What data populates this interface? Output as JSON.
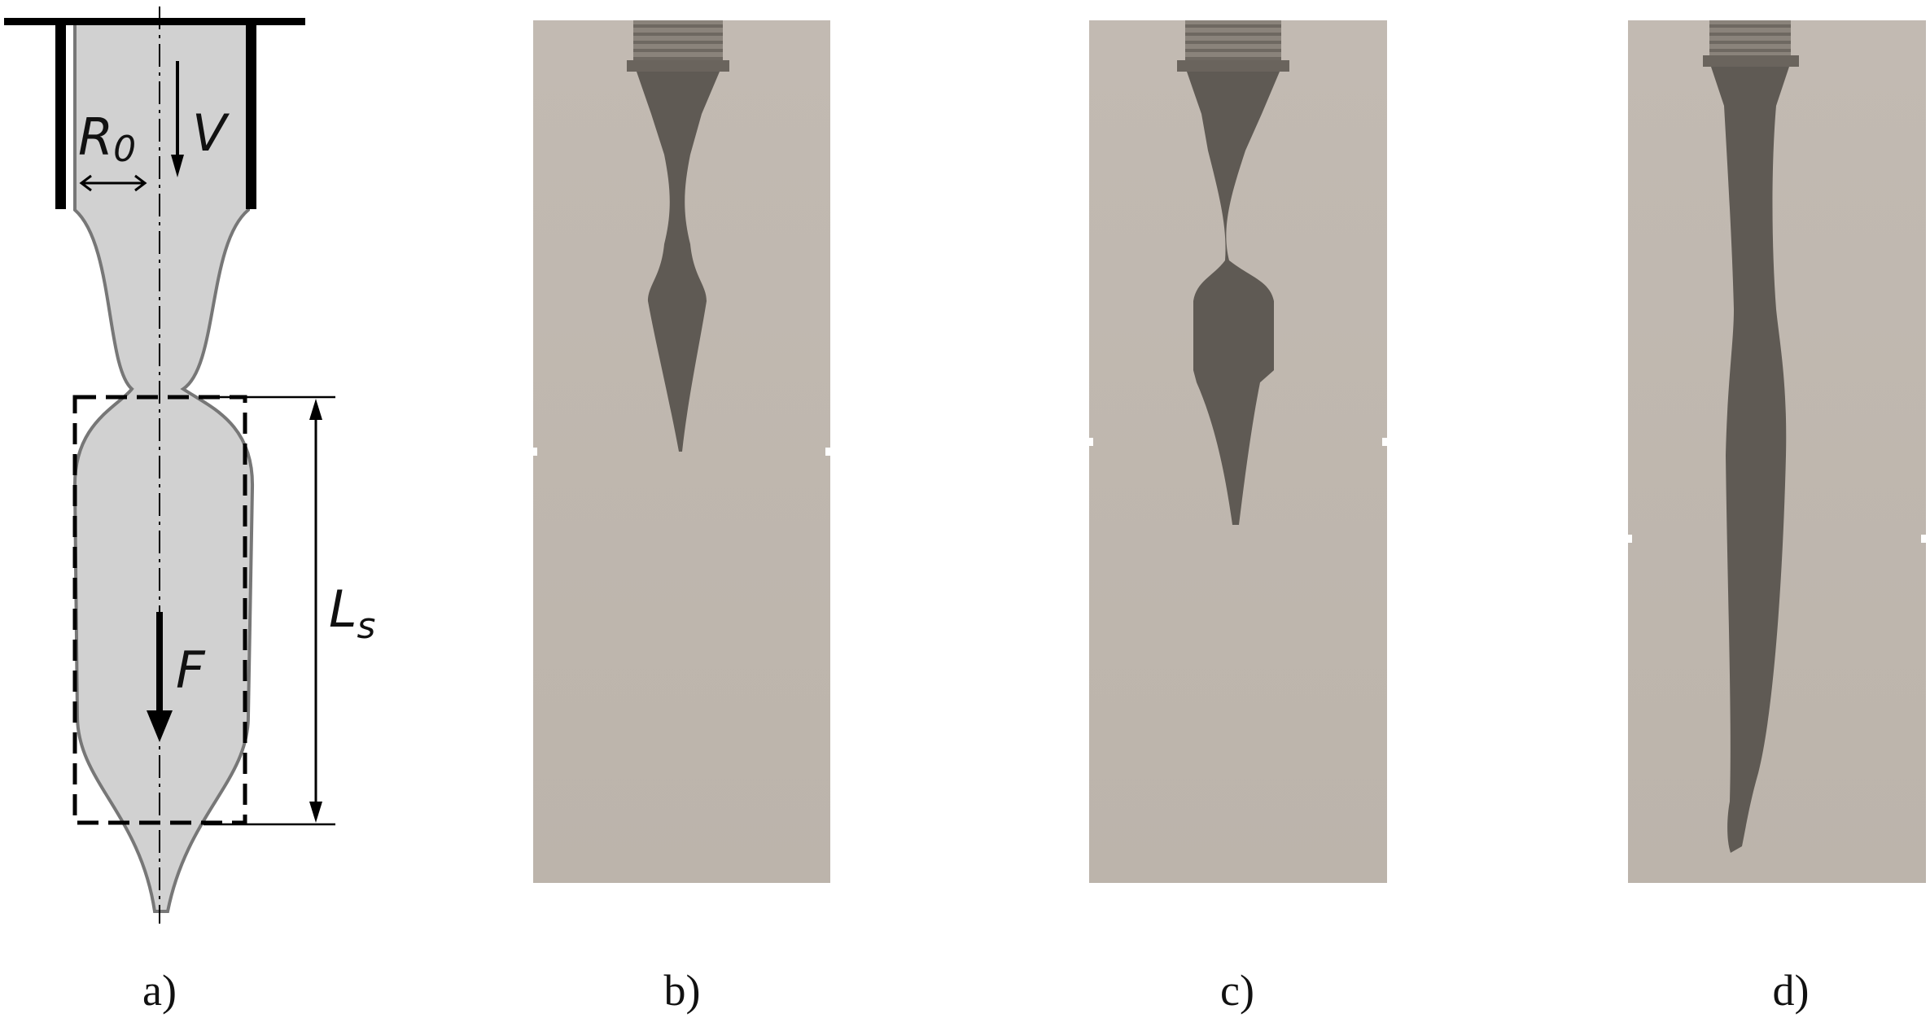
{
  "diagram": {
    "symbols": {
      "radius": "R",
      "radius_subscript": "0",
      "velocity": "V",
      "force": "F",
      "length": "L",
      "length_subscript": "s"
    },
    "panel_labels": [
      "a)",
      "b)",
      "c)",
      "d)"
    ]
  },
  "colors": {
    "fluid": "#d1d1d1",
    "fluid_outline": "#777777",
    "photo_background": "#bfb7ae",
    "photo_jet": "#5f5a54",
    "nozzle": "#7a736c"
  }
}
